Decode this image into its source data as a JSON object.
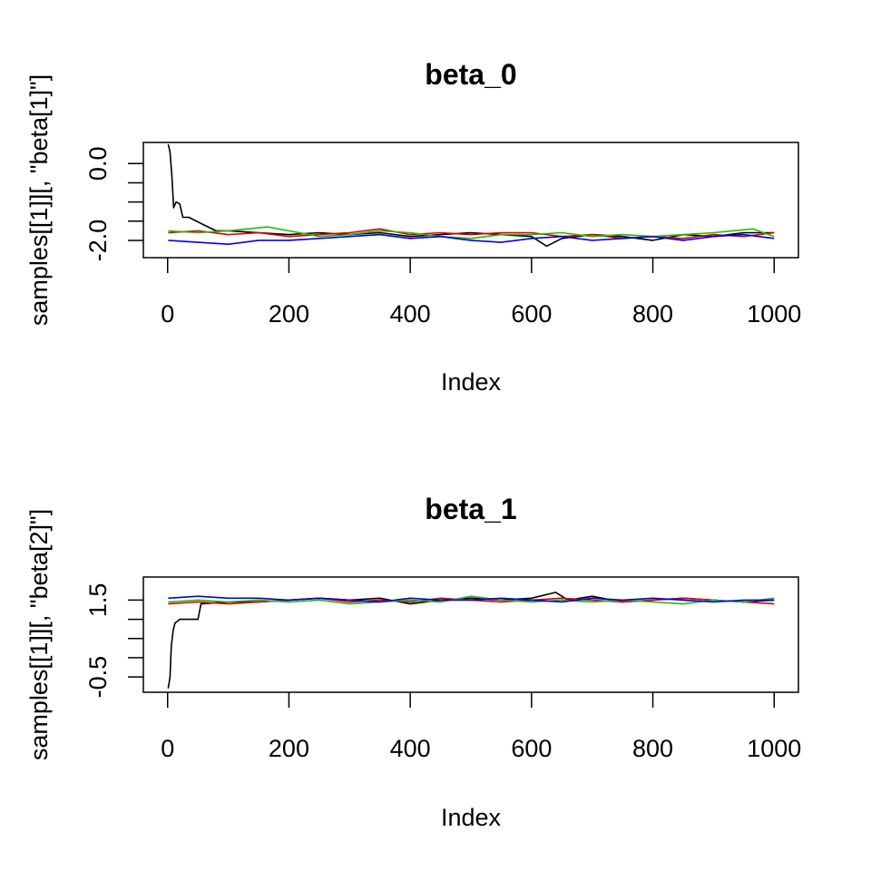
{
  "chart_data": [
    {
      "type": "line",
      "title": "beta_0",
      "xlabel": "Index",
      "ylabel": "samples[[1]][, \"beta[1]\"]",
      "xlim": [
        -40,
        1040
      ],
      "ylim": [
        -2.45,
        0.55
      ],
      "x_ticks": [
        0,
        200,
        400,
        600,
        800,
        1000
      ],
      "x_tick_labels": [
        "0",
        "200",
        "400",
        "600",
        "800",
        "1000"
      ],
      "y_ticks": [
        0.0,
        -0.5,
        -1.0,
        -1.5,
        -2.0
      ],
      "y_tick_labels": [
        "0.0",
        "",
        "",
        "",
        "-2.0"
      ],
      "grid": false,
      "series": [
        {
          "color": "#000000",
          "points": [
            [
              1,
              0.5
            ],
            [
              4,
              0.3
            ],
            [
              7,
              -0.3
            ],
            [
              10,
              -1.15
            ],
            [
              14,
              -1.0
            ],
            [
              20,
              -1.05
            ],
            [
              25,
              -1.4
            ],
            [
              35,
              -1.4
            ],
            [
              60,
              -1.6
            ],
            [
              80,
              -1.75
            ],
            [
              100,
              -1.75
            ],
            [
              150,
              -1.8
            ],
            [
              200,
              -1.85
            ],
            [
              250,
              -1.8
            ],
            [
              300,
              -1.85
            ],
            [
              350,
              -1.8
            ],
            [
              400,
              -1.9
            ],
            [
              450,
              -1.85
            ],
            [
              500,
              -1.8
            ],
            [
              550,
              -1.85
            ],
            [
              600,
              -1.9
            ],
            [
              625,
              -2.15
            ],
            [
              650,
              -1.95
            ],
            [
              700,
              -1.85
            ],
            [
              750,
              -1.9
            ],
            [
              800,
              -2.0
            ],
            [
              850,
              -1.85
            ],
            [
              900,
              -1.9
            ],
            [
              950,
              -1.8
            ],
            [
              1000,
              -1.8
            ]
          ]
        },
        {
          "color": "#df0000",
          "points": [
            [
              1,
              -1.8
            ],
            [
              50,
              -1.75
            ],
            [
              100,
              -1.85
            ],
            [
              150,
              -1.8
            ],
            [
              200,
              -1.9
            ],
            [
              250,
              -1.85
            ],
            [
              300,
              -1.8
            ],
            [
              350,
              -1.7
            ],
            [
              400,
              -1.85
            ],
            [
              450,
              -1.8
            ],
            [
              500,
              -1.85
            ],
            [
              550,
              -1.8
            ],
            [
              600,
              -1.8
            ],
            [
              650,
              -1.9
            ],
            [
              700,
              -1.85
            ],
            [
              750,
              -1.95
            ],
            [
              800,
              -1.9
            ],
            [
              850,
              -1.95
            ],
            [
              900,
              -1.85
            ],
            [
              950,
              -1.9
            ],
            [
              1000,
              -1.8
            ]
          ]
        },
        {
          "color": "#22bb00",
          "points": [
            [
              1,
              -1.75
            ],
            [
              50,
              -1.8
            ],
            [
              100,
              -1.75
            ],
            [
              165,
              -1.65
            ],
            [
              200,
              -1.75
            ],
            [
              250,
              -1.9
            ],
            [
              300,
              -1.85
            ],
            [
              350,
              -1.75
            ],
            [
              400,
              -1.8
            ],
            [
              450,
              -1.9
            ],
            [
              500,
              -1.95
            ],
            [
              550,
              -1.85
            ],
            [
              600,
              -1.85
            ],
            [
              650,
              -1.8
            ],
            [
              700,
              -1.9
            ],
            [
              750,
              -1.85
            ],
            [
              800,
              -1.9
            ],
            [
              850,
              -1.85
            ],
            [
              900,
              -1.8
            ],
            [
              965,
              -1.7
            ],
            [
              1000,
              -1.9
            ]
          ]
        },
        {
          "color": "#0000ee",
          "points": [
            [
              1,
              -2.0
            ],
            [
              50,
              -2.05
            ],
            [
              100,
              -2.1
            ],
            [
              150,
              -2.0
            ],
            [
              200,
              -2.0
            ],
            [
              250,
              -1.95
            ],
            [
              300,
              -1.9
            ],
            [
              350,
              -1.85
            ],
            [
              400,
              -1.95
            ],
            [
              450,
              -1.9
            ],
            [
              500,
              -2.0
            ],
            [
              550,
              -2.05
            ],
            [
              600,
              -1.95
            ],
            [
              650,
              -1.9
            ],
            [
              700,
              -2.0
            ],
            [
              750,
              -1.95
            ],
            [
              800,
              -1.9
            ],
            [
              850,
              -2.0
            ],
            [
              900,
              -1.9
            ],
            [
              950,
              -1.85
            ],
            [
              1000,
              -1.95
            ]
          ]
        }
      ]
    },
    {
      "type": "line",
      "title": "beta_1",
      "xlabel": "Index",
      "ylabel": "samples[[1]][, \"beta[2]\"]",
      "xlim": [
        -40,
        1040
      ],
      "ylim": [
        -0.9,
        2.1
      ],
      "x_ticks": [
        0,
        200,
        400,
        600,
        800,
        1000
      ],
      "x_tick_labels": [
        "0",
        "200",
        "400",
        "600",
        "800",
        "1000"
      ],
      "y_ticks": [
        1.5,
        1.0,
        0.5,
        0.0,
        -0.5
      ],
      "y_tick_labels": [
        "1.5",
        "",
        "",
        "",
        "-0.5"
      ],
      "grid": false,
      "series": [
        {
          "color": "#000000",
          "points": [
            [
              1,
              -0.8
            ],
            [
              4,
              -0.5
            ],
            [
              6,
              0.3
            ],
            [
              9,
              0.7
            ],
            [
              12,
              0.9
            ],
            [
              20,
              1.0
            ],
            [
              50,
              1.0
            ],
            [
              55,
              1.4
            ],
            [
              100,
              1.45
            ],
            [
              150,
              1.45
            ],
            [
              200,
              1.5
            ],
            [
              250,
              1.55
            ],
            [
              300,
              1.5
            ],
            [
              350,
              1.55
            ],
            [
              400,
              1.4
            ],
            [
              450,
              1.5
            ],
            [
              500,
              1.55
            ],
            [
              550,
              1.5
            ],
            [
              600,
              1.55
            ],
            [
              640,
              1.7
            ],
            [
              660,
              1.5
            ],
            [
              700,
              1.6
            ],
            [
              750,
              1.45
            ],
            [
              800,
              1.5
            ],
            [
              850,
              1.55
            ],
            [
              900,
              1.5
            ],
            [
              950,
              1.45
            ],
            [
              1000,
              1.5
            ]
          ]
        },
        {
          "color": "#df0000",
          "points": [
            [
              1,
              1.4
            ],
            [
              50,
              1.45
            ],
            [
              100,
              1.4
            ],
            [
              150,
              1.45
            ],
            [
              200,
              1.5
            ],
            [
              250,
              1.55
            ],
            [
              300,
              1.45
            ],
            [
              350,
              1.5
            ],
            [
              400,
              1.45
            ],
            [
              450,
              1.55
            ],
            [
              500,
              1.5
            ],
            [
              550,
              1.45
            ],
            [
              600,
              1.5
            ],
            [
              650,
              1.55
            ],
            [
              700,
              1.5
            ],
            [
              750,
              1.45
            ],
            [
              800,
              1.5
            ],
            [
              850,
              1.55
            ],
            [
              900,
              1.5
            ],
            [
              950,
              1.45
            ],
            [
              1000,
              1.4
            ]
          ]
        },
        {
          "color": "#22bb00",
          "points": [
            [
              1,
              1.45
            ],
            [
              50,
              1.5
            ],
            [
              100,
              1.45
            ],
            [
              150,
              1.5
            ],
            [
              200,
              1.45
            ],
            [
              250,
              1.5
            ],
            [
              300,
              1.4
            ],
            [
              350,
              1.45
            ],
            [
              400,
              1.5
            ],
            [
              450,
              1.45
            ],
            [
              500,
              1.6
            ],
            [
              550,
              1.5
            ],
            [
              600,
              1.45
            ],
            [
              650,
              1.5
            ],
            [
              700,
              1.45
            ],
            [
              750,
              1.5
            ],
            [
              800,
              1.45
            ],
            [
              850,
              1.4
            ],
            [
              900,
              1.5
            ],
            [
              950,
              1.45
            ],
            [
              1000,
              1.55
            ]
          ]
        },
        {
          "color": "#0000ee",
          "points": [
            [
              1,
              1.55
            ],
            [
              50,
              1.6
            ],
            [
              100,
              1.55
            ],
            [
              150,
              1.55
            ],
            [
              200,
              1.5
            ],
            [
              250,
              1.55
            ],
            [
              300,
              1.5
            ],
            [
              350,
              1.45
            ],
            [
              400,
              1.55
            ],
            [
              450,
              1.5
            ],
            [
              500,
              1.5
            ],
            [
              550,
              1.55
            ],
            [
              600,
              1.5
            ],
            [
              650,
              1.45
            ],
            [
              700,
              1.55
            ],
            [
              750,
              1.5
            ],
            [
              800,
              1.55
            ],
            [
              850,
              1.5
            ],
            [
              900,
              1.45
            ],
            [
              950,
              1.5
            ],
            [
              1000,
              1.5
            ]
          ]
        }
      ]
    }
  ]
}
